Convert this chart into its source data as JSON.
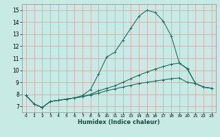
{
  "title": "",
  "xlabel": "Humidex (Indice chaleur)",
  "ylabel": "",
  "bg_color": "#c8eae4",
  "grid_color": "#dba8a8",
  "line_color": "#1a6e60",
  "xlim": [
    -0.5,
    23.5
  ],
  "ylim": [
    6.5,
    15.5
  ],
  "xticks": [
    0,
    1,
    2,
    3,
    4,
    5,
    6,
    7,
    8,
    9,
    10,
    11,
    12,
    13,
    14,
    15,
    16,
    17,
    18,
    19,
    20,
    21,
    22,
    23
  ],
  "yticks": [
    7,
    8,
    9,
    10,
    11,
    12,
    13,
    14,
    15
  ],
  "series": [
    [
      7.9,
      7.2,
      6.9,
      7.4,
      7.5,
      7.6,
      7.7,
      7.9,
      8.4,
      9.7,
      11.1,
      11.5,
      12.5,
      13.5,
      14.5,
      15.0,
      14.8,
      14.1,
      12.85,
      10.6,
      10.15,
      8.9,
      8.6,
      8.5
    ],
    [
      7.9,
      7.2,
      6.9,
      7.4,
      7.5,
      7.6,
      7.7,
      7.8,
      8.0,
      8.3,
      8.5,
      8.7,
      9.0,
      9.3,
      9.6,
      9.85,
      10.1,
      10.3,
      10.5,
      10.6,
      10.1,
      8.9,
      8.6,
      8.5
    ],
    [
      7.9,
      7.2,
      6.9,
      7.4,
      7.5,
      7.6,
      7.7,
      7.8,
      7.95,
      8.1,
      8.3,
      8.45,
      8.6,
      8.75,
      8.9,
      9.0,
      9.1,
      9.2,
      9.3,
      9.35,
      9.0,
      8.9,
      8.6,
      8.5
    ]
  ]
}
